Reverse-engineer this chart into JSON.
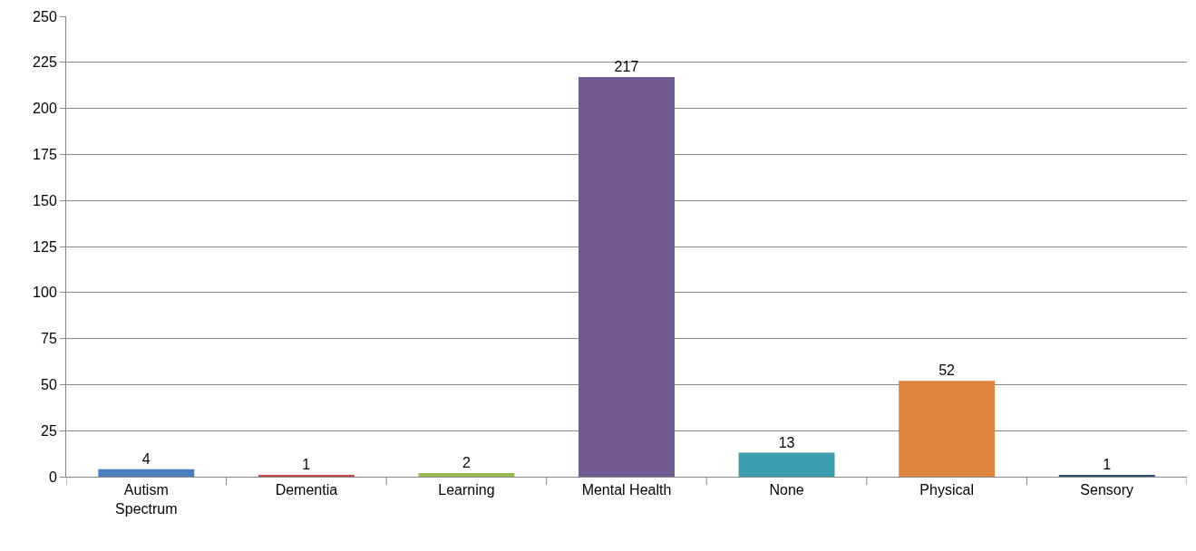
{
  "chart_data": {
    "type": "bar",
    "categories": [
      "Autism Spectrum",
      "Dementia",
      "Learning",
      "Mental Health",
      "None",
      "Physical",
      "Sensory"
    ],
    "values": [
      4,
      1,
      2,
      217,
      13,
      52,
      1
    ],
    "colors": [
      "#4a7ebb",
      "#be4b48",
      "#98b954",
      "#705a8f",
      "#3f9db0",
      "#dd8540",
      "#2c4d75"
    ],
    "ylim": [
      0,
      250
    ],
    "yticks": [
      0,
      25,
      50,
      75,
      100,
      125,
      150,
      175,
      200,
      225,
      250
    ],
    "grid": "y",
    "data_labels": true
  }
}
